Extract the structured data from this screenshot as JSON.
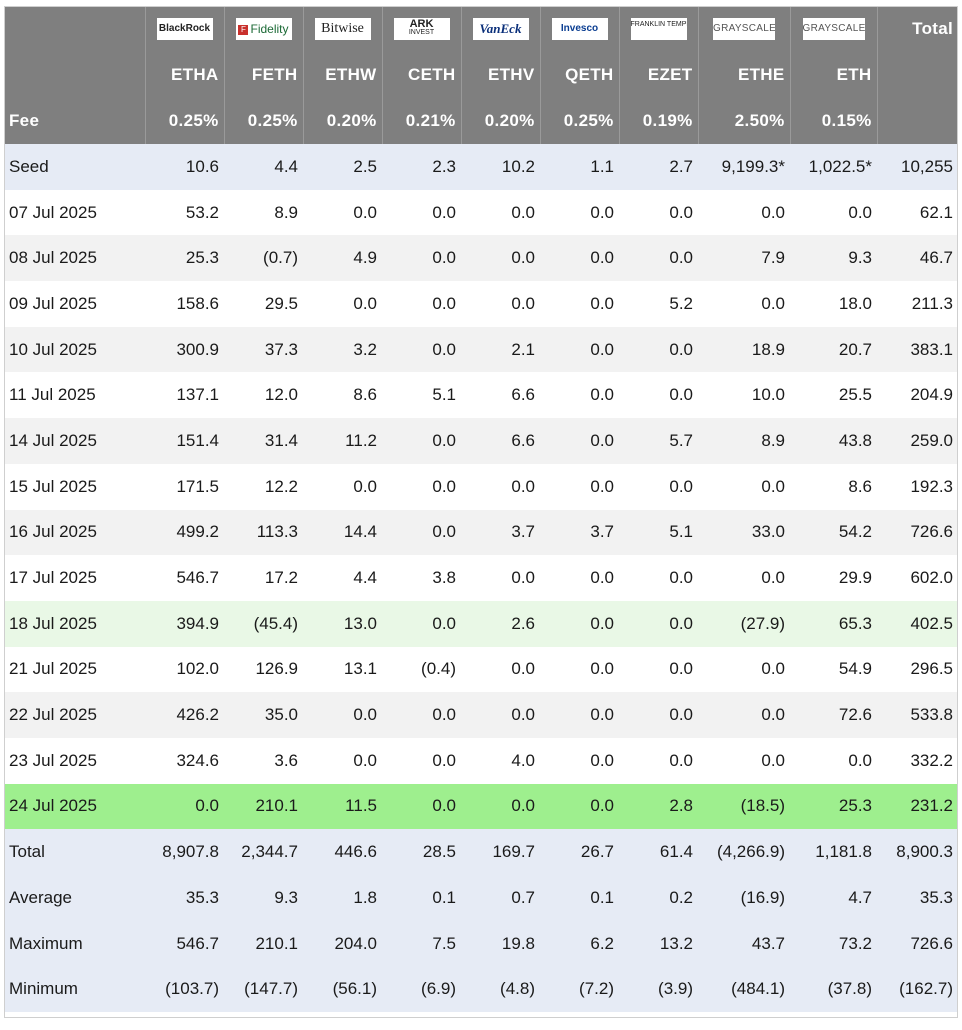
{
  "columns": [
    {
      "brand": "BlackRock",
      "ticker": "ETHA",
      "fee": "0.25%"
    },
    {
      "brand": "Fidelity",
      "ticker": "FETH",
      "fee": "0.25%"
    },
    {
      "brand": "Bitwise",
      "ticker": "ETHW",
      "fee": "0.20%"
    },
    {
      "brand": "ARK",
      "brand_sub": "INVEST",
      "ticker": "CETH",
      "fee": "0.21%"
    },
    {
      "brand": "VanEck",
      "ticker": "ETHV",
      "fee": "0.20%"
    },
    {
      "brand": "Invesco",
      "ticker": "QETH",
      "fee": "0.25%"
    },
    {
      "brand": "FRANKLIN TEMPLETON",
      "ticker": "EZET",
      "fee": "0.19%"
    },
    {
      "brand": "GRAYSCALE",
      "ticker": "ETHE",
      "fee": "2.50%"
    },
    {
      "brand": "GRAYSCALE",
      "ticker": "ETH",
      "fee": "0.15%"
    }
  ],
  "header": {
    "total_label": "Total",
    "fee_label": "Fee"
  },
  "rows": [
    {
      "label": "Seed",
      "style": "seed",
      "values": [
        "10.6",
        "4.4",
        "2.5",
        "2.3",
        "10.2",
        "1.1",
        "2.7",
        "9,199.3*",
        "1,022.5*",
        "10,255"
      ]
    },
    {
      "label": "07 Jul 2025",
      "style": "even",
      "values": [
        "53.2",
        "8.9",
        "0.0",
        "0.0",
        "0.0",
        "0.0",
        "0.0",
        "0.0",
        "0.0",
        "62.1"
      ]
    },
    {
      "label": "08 Jul 2025",
      "style": "odd",
      "values": [
        "25.3",
        "(0.7)",
        "4.9",
        "0.0",
        "0.0",
        "0.0",
        "0.0",
        "7.9",
        "9.3",
        "46.7"
      ]
    },
    {
      "label": "09 Jul 2025",
      "style": "even",
      "values": [
        "158.6",
        "29.5",
        "0.0",
        "0.0",
        "0.0",
        "0.0",
        "5.2",
        "0.0",
        "18.0",
        "211.3"
      ]
    },
    {
      "label": "10 Jul 2025",
      "style": "odd",
      "values": [
        "300.9",
        "37.3",
        "3.2",
        "0.0",
        "2.1",
        "0.0",
        "0.0",
        "18.9",
        "20.7",
        "383.1"
      ]
    },
    {
      "label": "11 Jul 2025",
      "style": "even",
      "values": [
        "137.1",
        "12.0",
        "8.6",
        "5.1",
        "6.6",
        "0.0",
        "0.0",
        "10.0",
        "25.5",
        "204.9"
      ]
    },
    {
      "label": "14 Jul 2025",
      "style": "odd",
      "values": [
        "151.4",
        "31.4",
        "11.2",
        "0.0",
        "6.6",
        "0.0",
        "5.7",
        "8.9",
        "43.8",
        "259.0"
      ]
    },
    {
      "label": "15 Jul 2025",
      "style": "even",
      "values": [
        "171.5",
        "12.2",
        "0.0",
        "0.0",
        "0.0",
        "0.0",
        "0.0",
        "0.0",
        "8.6",
        "192.3"
      ]
    },
    {
      "label": "16 Jul 2025",
      "style": "odd",
      "values": [
        "499.2",
        "113.3",
        "14.4",
        "0.0",
        "3.7",
        "3.7",
        "5.1",
        "33.0",
        "54.2",
        "726.6"
      ]
    },
    {
      "label": "17 Jul 2025",
      "style": "even",
      "values": [
        "546.7",
        "17.2",
        "4.4",
        "3.8",
        "0.0",
        "0.0",
        "0.0",
        "0.0",
        "29.9",
        "602.0"
      ]
    },
    {
      "label": "18 Jul 2025",
      "style": "lightgreen",
      "values": [
        "394.9",
        "(45.4)",
        "13.0",
        "0.0",
        "2.6",
        "0.0",
        "0.0",
        "(27.9)",
        "65.3",
        "402.5"
      ]
    },
    {
      "label": "21 Jul 2025",
      "style": "even",
      "values": [
        "102.0",
        "126.9",
        "13.1",
        "(0.4)",
        "0.0",
        "0.0",
        "0.0",
        "0.0",
        "54.9",
        "296.5"
      ]
    },
    {
      "label": "22 Jul 2025",
      "style": "odd",
      "values": [
        "426.2",
        "35.0",
        "0.0",
        "0.0",
        "0.0",
        "0.0",
        "0.0",
        "0.0",
        "72.6",
        "533.8"
      ]
    },
    {
      "label": "23 Jul 2025",
      "style": "even",
      "values": [
        "324.6",
        "3.6",
        "0.0",
        "0.0",
        "4.0",
        "0.0",
        "0.0",
        "0.0",
        "0.0",
        "332.2"
      ]
    },
    {
      "label": "24 Jul 2025",
      "style": "green",
      "values": [
        "0.0",
        "210.1",
        "11.5",
        "0.0",
        "0.0",
        "0.0",
        "2.8",
        "(18.5)",
        "25.3",
        "231.2"
      ]
    },
    {
      "label": "Total",
      "style": "summary",
      "values": [
        "8,907.8",
        "2,344.7",
        "446.6",
        "28.5",
        "169.7",
        "26.7",
        "61.4",
        "(4,266.9)",
        "1,181.8",
        "8,900.3"
      ]
    },
    {
      "label": "Average",
      "style": "summary",
      "values": [
        "35.3",
        "9.3",
        "1.8",
        "0.1",
        "0.7",
        "0.1",
        "0.2",
        "(16.9)",
        "4.7",
        "35.3"
      ]
    },
    {
      "label": "Maximum",
      "style": "summary",
      "values": [
        "546.7",
        "210.1",
        "204.0",
        "7.5",
        "19.8",
        "6.2",
        "13.2",
        "43.7",
        "73.2",
        "726.6"
      ]
    },
    {
      "label": "Minimum",
      "style": "summary",
      "values": [
        "(103.7)",
        "(147.7)",
        "(56.1)",
        "(6.9)",
        "(4.8)",
        "(7.2)",
        "(3.9)",
        "(484.1)",
        "(37.8)",
        "(162.7)"
      ]
    }
  ],
  "colors": {
    "header_bg": "#7f7f7f",
    "negative": "#e0302a",
    "highlight_green": "#9eef8e",
    "light_green": "#e9f8e6",
    "summary_bg": "#e6ebf5"
  }
}
